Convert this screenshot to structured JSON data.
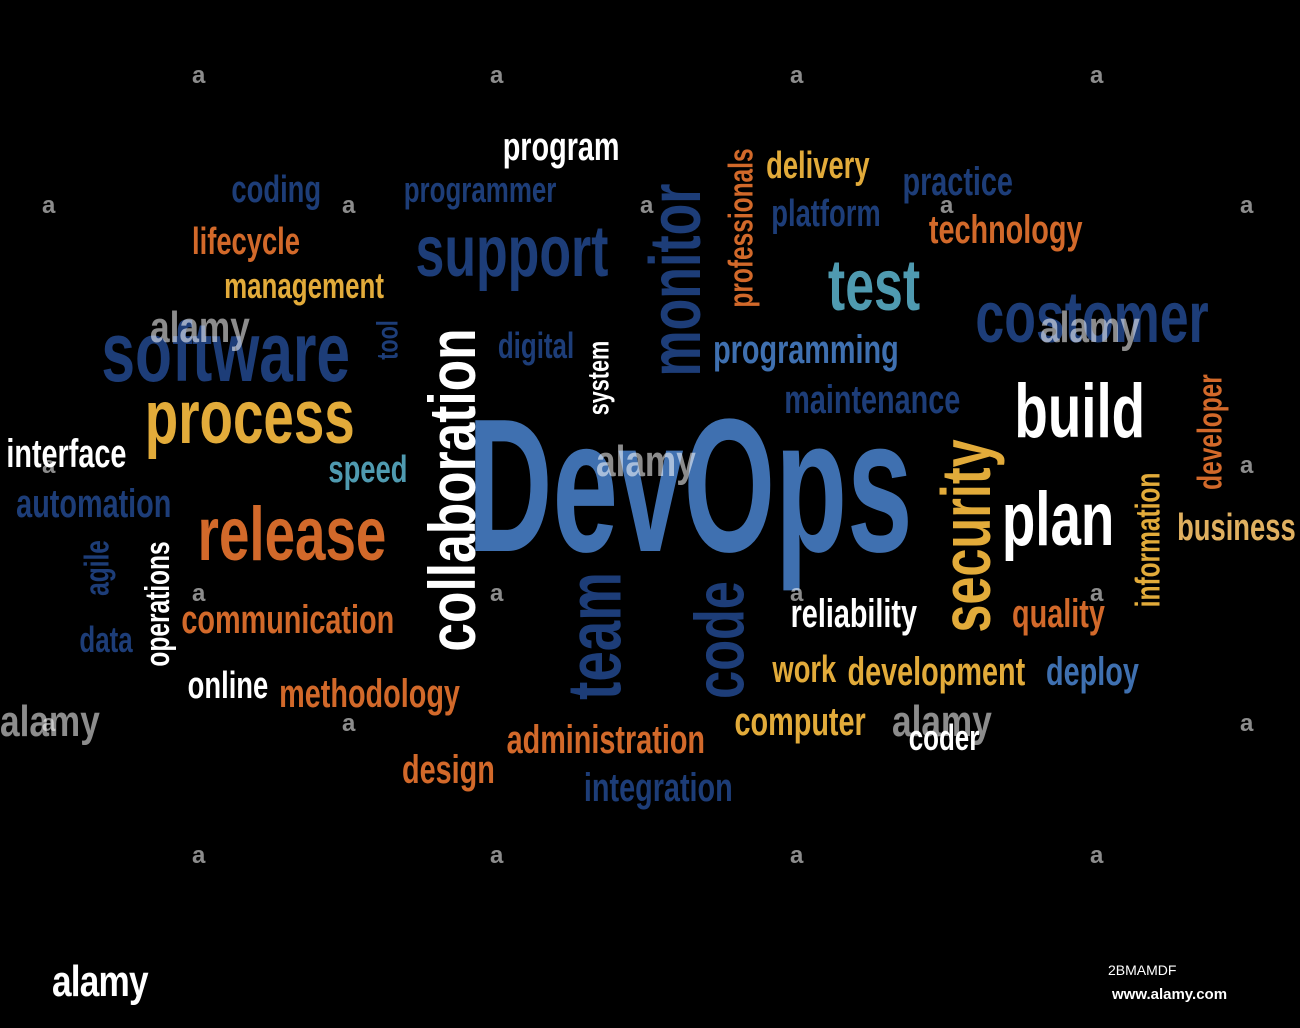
{
  "colors": {
    "white": "#ffffff",
    "orange": "#d2692a",
    "gold": "#e2ab3a",
    "navy": "#1d3d78",
    "blue": "#3f70b0",
    "teal": "#4f9ab0",
    "tan": "#e0b060"
  },
  "words": [
    {
      "text": "DevOps",
      "color": "blue",
      "size": 190
    },
    {
      "text": "collaboration",
      "color": "white",
      "size": 66
    },
    {
      "text": "support",
      "color": "navy",
      "size": 72
    },
    {
      "text": "monitor",
      "color": "navy",
      "size": 72
    },
    {
      "text": "software",
      "color": "navy",
      "size": 84
    },
    {
      "text": "process",
      "color": "gold",
      "size": 76
    },
    {
      "text": "release",
      "color": "orange",
      "size": 76
    },
    {
      "text": "team",
      "color": "navy",
      "size": 76
    },
    {
      "text": "code",
      "color": "navy",
      "size": 70
    },
    {
      "text": "security",
      "color": "gold",
      "size": 70
    },
    {
      "text": "test",
      "color": "teal",
      "size": 72
    },
    {
      "text": "costomer",
      "color": "navy",
      "size": 72
    },
    {
      "text": "build",
      "color": "white",
      "size": 76
    },
    {
      "text": "plan",
      "color": "white",
      "size": 76
    },
    {
      "text": "program",
      "color": "white",
      "size": 40
    },
    {
      "text": "coding",
      "color": "navy",
      "size": 38
    },
    {
      "text": "programmer",
      "color": "navy",
      "size": 36
    },
    {
      "text": "lifecycle",
      "color": "orange",
      "size": 38
    },
    {
      "text": "management",
      "color": "gold",
      "size": 36
    },
    {
      "text": "professionals",
      "color": "orange",
      "size": 34
    },
    {
      "text": "delivery",
      "color": "gold",
      "size": 38
    },
    {
      "text": "platform",
      "color": "navy",
      "size": 38
    },
    {
      "text": "practice",
      "color": "navy",
      "size": 40
    },
    {
      "text": "technology",
      "color": "orange",
      "size": 40
    },
    {
      "text": "tool",
      "color": "navy",
      "size": 30
    },
    {
      "text": "digital",
      "color": "navy",
      "size": 36
    },
    {
      "text": "system",
      "color": "white",
      "size": 30
    },
    {
      "text": "programming",
      "color": "blue",
      "size": 40
    },
    {
      "text": "maintenance",
      "color": "navy",
      "size": 40
    },
    {
      "text": "interface",
      "color": "white",
      "size": 40
    },
    {
      "text": "speed",
      "color": "teal",
      "size": 38
    },
    {
      "text": "automation",
      "color": "navy",
      "size": 40
    },
    {
      "text": "agile",
      "color": "navy",
      "size": 34
    },
    {
      "text": "operations",
      "color": "white",
      "size": 34
    },
    {
      "text": "data",
      "color": "navy",
      "size": 36
    },
    {
      "text": "communication",
      "color": "orange",
      "size": 40
    },
    {
      "text": "online",
      "color": "white",
      "size": 38
    },
    {
      "text": "methodology",
      "color": "orange",
      "size": 40
    },
    {
      "text": "design",
      "color": "orange",
      "size": 40
    },
    {
      "text": "administration",
      "color": "orange",
      "size": 40
    },
    {
      "text": "integration",
      "color": "navy",
      "size": 40
    },
    {
      "text": "computer",
      "color": "gold",
      "size": 40
    },
    {
      "text": "coder",
      "color": "white",
      "size": 36
    },
    {
      "text": "reliability",
      "color": "white",
      "size": 40
    },
    {
      "text": "work",
      "color": "gold",
      "size": 38
    },
    {
      "text": "development",
      "color": "gold",
      "size": 40
    },
    {
      "text": "quality",
      "color": "orange",
      "size": 40
    },
    {
      "text": "deploy",
      "color": "blue",
      "size": 40
    },
    {
      "text": "developer",
      "color": "orange",
      "size": 34
    },
    {
      "text": "information",
      "color": "gold",
      "size": 34
    },
    {
      "text": "business",
      "color": "tan",
      "size": 38
    }
  ],
  "watermark": {
    "word": "alamy",
    "dot": "a",
    "logo": "alamy",
    "image_id": "2BMAMDF",
    "url": "www.alamy.com"
  }
}
